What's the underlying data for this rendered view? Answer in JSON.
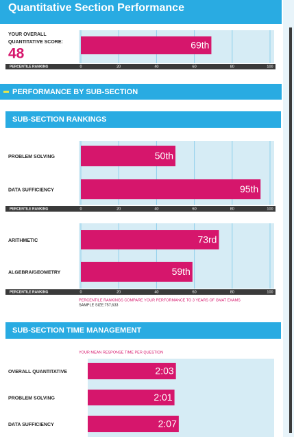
{
  "header": {
    "title": "Quantitative Section Performance"
  },
  "overall": {
    "label": [
      "YOUR OVERALL",
      "QUANTITATIVE SCORE:"
    ],
    "score": 48
  },
  "sections": [
    "PERFORMANCE BY SUB-SECTION",
    "SUB-SECTION RANKINGS",
    "SUB-SECTION TIME MANAGEMENT"
  ],
  "notes": [
    "PERCENTILE RANKINGS COMPARE YOUR PERFORMANCE TO 3 YEARS OF GMAT EXAMS",
    "SAMPLE SIZE:757,633",
    "YOUR MEAN RESPONSE TIME PER QUESTION"
  ],
  "chart_data": [
    {
      "type": "bar",
      "orientation": "horizontal",
      "values": [
        69
      ],
      "value_labels": [
        "69th"
      ],
      "color": "#d6166c",
      "xlabel": "PERCENTILE RANKING",
      "xlim": [
        0,
        100
      ],
      "xticks": [
        0,
        20,
        40,
        60,
        80,
        100
      ],
      "grid": true
    },
    {
      "type": "bar",
      "orientation": "horizontal",
      "categories": [
        "PROBLEM SOLVING",
        "DATA SUFFICIENCY"
      ],
      "values": [
        50,
        95
      ],
      "value_labels": [
        "50th",
        "95th"
      ],
      "color": "#d6166c",
      "xlabel": "PERCENTILE RANKING",
      "xlim": [
        0,
        100
      ],
      "xticks": [
        0,
        20,
        40,
        60,
        80,
        100
      ],
      "grid": true
    },
    {
      "type": "bar",
      "orientation": "horizontal",
      "categories": [
        "ARITHMETIC",
        "ALGEBRA/GEOMETRY"
      ],
      "values": [
        73,
        59
      ],
      "value_labels": [
        "73rd",
        "59th"
      ],
      "color": "#d6166c",
      "xlabel": "PERCENTILE RANKING",
      "xlim": [
        0,
        100
      ],
      "xticks": [
        0,
        20,
        40,
        60,
        80,
        100
      ],
      "grid": true
    },
    {
      "type": "bar",
      "orientation": "horizontal",
      "categories": [
        "OVERALL QUANTITATIVE",
        "PROBLEM SOLVING",
        "DATA SUFFICIENCY"
      ],
      "values": [
        123,
        121,
        127
      ],
      "value_labels": [
        "2:03",
        "2:01",
        "2:07"
      ],
      "color": "#d6166c",
      "xlim": [
        0,
        260
      ],
      "grid": false
    }
  ]
}
